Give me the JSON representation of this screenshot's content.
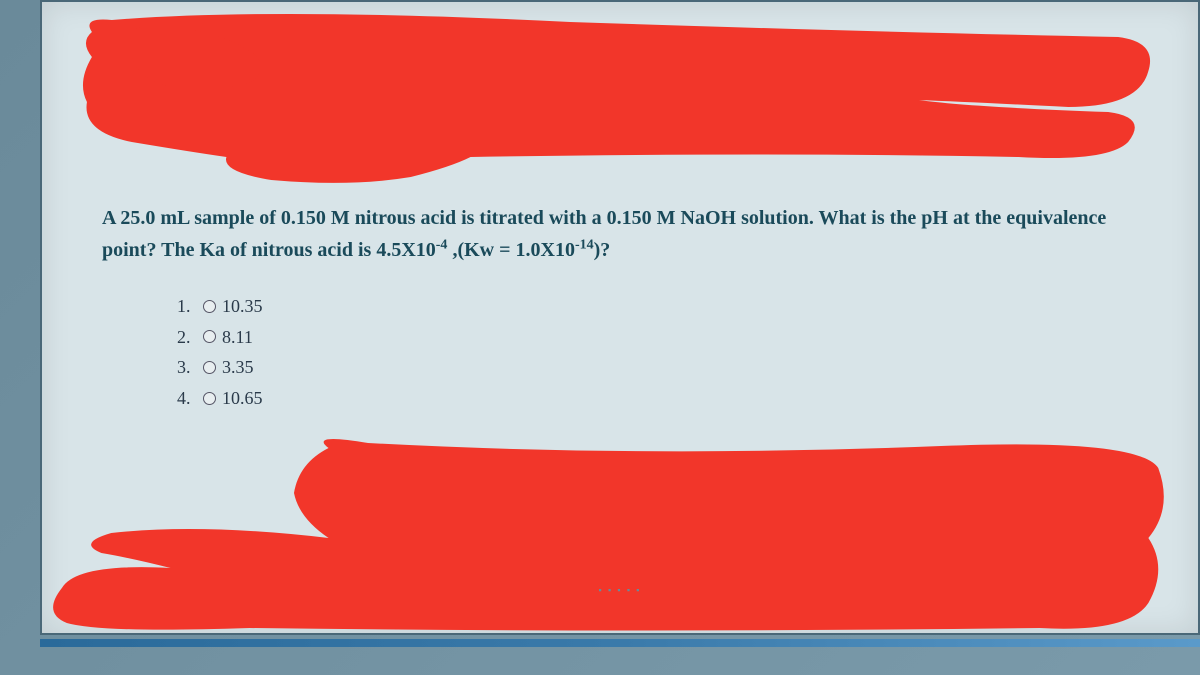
{
  "question": {
    "text_html": "A 25.0 mL sample of 0.150 M nitrous acid is titrated with a 0.150 M NaOH solution. What is the pH at the equivalence point? The Ka of nitrous acid is 4.5X10<sup>-4</sup> ,(Kw = 1.0X10<sup>-14</sup>)?",
    "options": [
      {
        "number": "1.",
        "value": "10.35"
      },
      {
        "number": "2.",
        "value": "8.11"
      },
      {
        "number": "3.",
        "value": "3.35"
      },
      {
        "number": "4.",
        "value": "10.65"
      }
    ]
  },
  "redaction": {
    "color": "#f2362a"
  },
  "colors": {
    "background": "#d8e4e8",
    "text_primary": "#1a4a5a",
    "text_secondary": "#2a3a4a",
    "border": "#4a6878"
  }
}
